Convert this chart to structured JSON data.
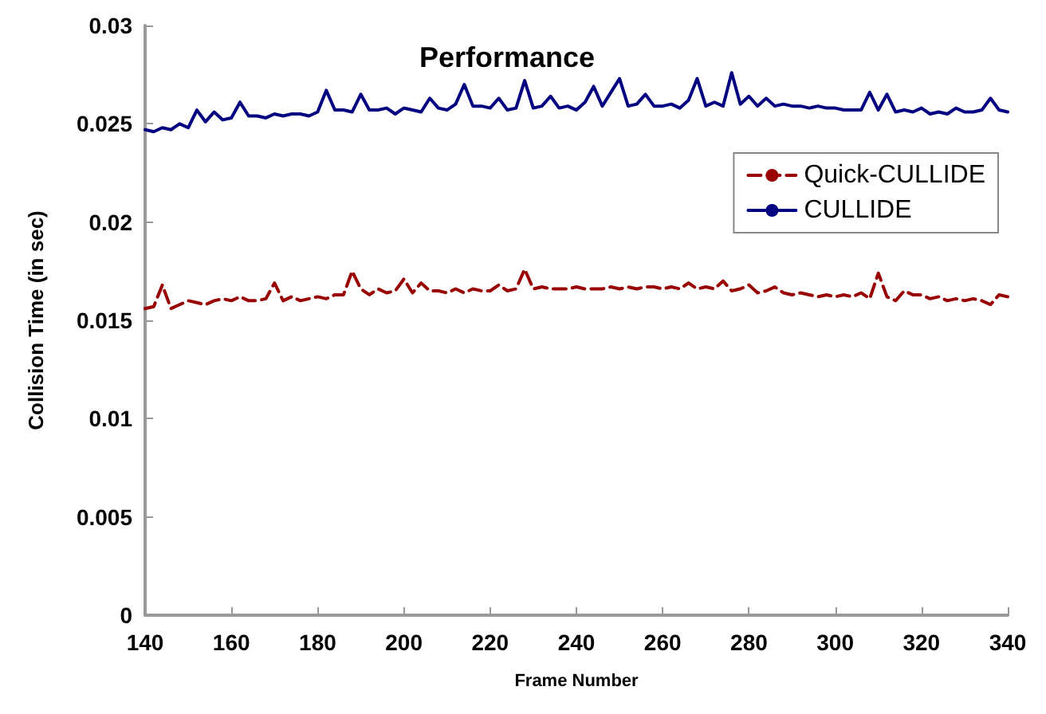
{
  "chart_data": {
    "type": "line",
    "title": "Performance",
    "xlabel": "Frame Number",
    "ylabel": "Collision Time (in sec)",
    "x": [
      140,
      142,
      144,
      146,
      148,
      150,
      152,
      154,
      156,
      158,
      160,
      162,
      164,
      166,
      168,
      170,
      172,
      174,
      176,
      178,
      180,
      182,
      184,
      186,
      188,
      190,
      192,
      194,
      196,
      198,
      200,
      202,
      204,
      206,
      208,
      210,
      212,
      214,
      216,
      218,
      220,
      222,
      224,
      226,
      228,
      230,
      232,
      234,
      236,
      238,
      240,
      242,
      244,
      246,
      248,
      250,
      252,
      254,
      256,
      258,
      260,
      262,
      264,
      266,
      268,
      270,
      272,
      274,
      276,
      278,
      280,
      282,
      284,
      286,
      288,
      290,
      292,
      294,
      296,
      298,
      300,
      302,
      304,
      306,
      308,
      310,
      312,
      314,
      316,
      318,
      320,
      322,
      324,
      326,
      328,
      330,
      332,
      334,
      336,
      338,
      340
    ],
    "series": [
      {
        "name": "Quick-CULLIDE",
        "color": "#990000",
        "line_style": "dashed",
        "values": [
          0.0156,
          0.0157,
          0.0168,
          0.0156,
          0.0158,
          0.016,
          0.0159,
          0.0158,
          0.016,
          0.0161,
          0.016,
          0.0162,
          0.016,
          0.016,
          0.0161,
          0.0169,
          0.016,
          0.0162,
          0.016,
          0.0161,
          0.0162,
          0.0161,
          0.0163,
          0.0163,
          0.0175,
          0.0166,
          0.0163,
          0.0166,
          0.0164,
          0.0165,
          0.0171,
          0.0164,
          0.0169,
          0.0165,
          0.0165,
          0.0164,
          0.0166,
          0.0164,
          0.0166,
          0.0165,
          0.0165,
          0.0168,
          0.0165,
          0.0166,
          0.0176,
          0.0166,
          0.0167,
          0.0166,
          0.0166,
          0.0166,
          0.0167,
          0.0166,
          0.0166,
          0.0166,
          0.0167,
          0.0166,
          0.0167,
          0.0166,
          0.0167,
          0.0167,
          0.0166,
          0.0167,
          0.0166,
          0.0169,
          0.0166,
          0.0167,
          0.0166,
          0.017,
          0.0165,
          0.0166,
          0.0168,
          0.0164,
          0.0165,
          0.0167,
          0.0164,
          0.0163,
          0.0164,
          0.0163,
          0.0162,
          0.0163,
          0.0162,
          0.0163,
          0.0162,
          0.0164,
          0.0161,
          0.0174,
          0.0162,
          0.016,
          0.0165,
          0.0163,
          0.0163,
          0.0161,
          0.0162,
          0.016,
          0.0161,
          0.016,
          0.0161,
          0.016,
          0.0158,
          0.0163,
          0.0162
        ]
      },
      {
        "name": "CULLIDE",
        "color": "#000080",
        "line_style": "solid",
        "values": [
          0.0247,
          0.0246,
          0.0248,
          0.0247,
          0.025,
          0.0248,
          0.0257,
          0.0251,
          0.0256,
          0.0252,
          0.0253,
          0.0261,
          0.0254,
          0.0254,
          0.0253,
          0.0255,
          0.0254,
          0.0255,
          0.0255,
          0.0254,
          0.0256,
          0.0267,
          0.0257,
          0.0257,
          0.0256,
          0.0265,
          0.0257,
          0.0257,
          0.0258,
          0.0255,
          0.0258,
          0.0257,
          0.0256,
          0.0263,
          0.0258,
          0.0257,
          0.026,
          0.027,
          0.0259,
          0.0259,
          0.0258,
          0.0263,
          0.0257,
          0.0258,
          0.0272,
          0.0258,
          0.0259,
          0.0264,
          0.0258,
          0.0259,
          0.0257,
          0.0261,
          0.0269,
          0.0259,
          0.0266,
          0.0273,
          0.0259,
          0.026,
          0.0265,
          0.0259,
          0.0259,
          0.026,
          0.0258,
          0.0262,
          0.0273,
          0.0259,
          0.0261,
          0.0259,
          0.0276,
          0.026,
          0.0264,
          0.0259,
          0.0263,
          0.0259,
          0.026,
          0.0259,
          0.0259,
          0.0258,
          0.0259,
          0.0258,
          0.0258,
          0.0257,
          0.0257,
          0.0257,
          0.0266,
          0.0257,
          0.0265,
          0.0256,
          0.0257,
          0.0256,
          0.0258,
          0.0255,
          0.0256,
          0.0255,
          0.0258,
          0.0256,
          0.0256,
          0.0257,
          0.0263,
          0.0257,
          0.0256
        ]
      }
    ],
    "xlim": [
      140,
      340
    ],
    "xticks": [
      140,
      160,
      180,
      200,
      220,
      240,
      260,
      280,
      300,
      320,
      340
    ],
    "ylim": [
      0,
      0.03
    ],
    "yticks": [
      0,
      0.005,
      0.01,
      0.015,
      0.02,
      0.025,
      0.03
    ],
    "grid": false,
    "legend": "top right",
    "marker": "none"
  }
}
